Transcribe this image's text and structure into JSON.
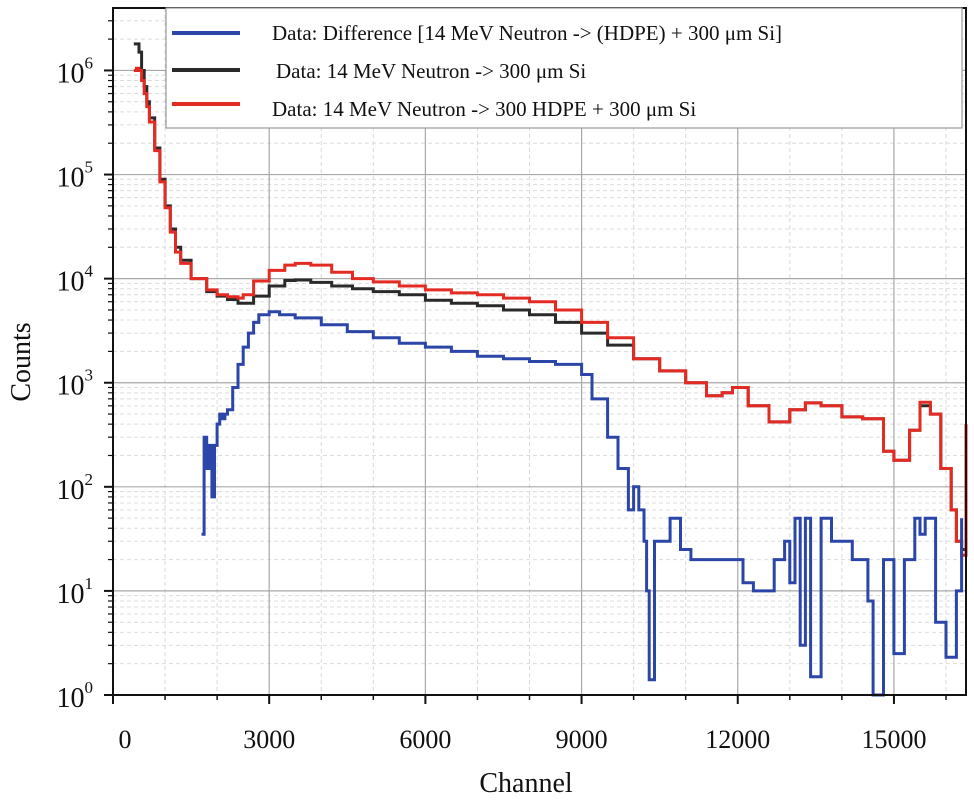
{
  "chart_data": {
    "type": "line",
    "title": "",
    "xlabel": "Channel",
    "ylabel": "Counts",
    "xlim": [
      0,
      16384
    ],
    "ylim_log10": [
      0,
      6.6
    ],
    "x_ticks": [
      0,
      3000,
      6000,
      9000,
      12000,
      15000
    ],
    "x_tick_labels": [
      "0",
      "3000",
      "6000",
      "9000",
      "12000",
      "15000"
    ],
    "y_ticks_log10": [
      0,
      1,
      2,
      3,
      4,
      5,
      6
    ],
    "y_tick_base": "10",
    "y_tick_exponents": [
      "0",
      "1",
      "2",
      "3",
      "4",
      "5",
      "6"
    ],
    "grid": true,
    "legend_position": "top-right",
    "series": [
      {
        "name": "Data: Difference [14 MeV Neutron -> (HDPE) + 300 μm Si]",
        "color": "#2b46a8",
        "x": [
          1700,
          1750,
          1800,
          1850,
          1900,
          1950,
          2000,
          2050,
          2100,
          2150,
          2200,
          2300,
          2400,
          2500,
          2600,
          2700,
          2800,
          3000,
          3200,
          3500,
          4000,
          4500,
          5000,
          5500,
          6000,
          6500,
          7000,
          7500,
          8000,
          8500,
          9000,
          9200,
          9500,
          9700,
          9900,
          10000,
          10100,
          10200,
          10250,
          10300,
          10350,
          10400,
          10500,
          10700,
          10900,
          11100,
          11300,
          11500,
          11700,
          11900,
          12100,
          12300,
          12500,
          12700,
          12900,
          13000,
          13100,
          13200,
          13300,
          13400,
          13600,
          13800,
          14000,
          14200,
          14400,
          14500,
          14600,
          14700,
          14800,
          14900,
          15000,
          15200,
          15400,
          15500,
          15600,
          15800,
          16000,
          16200,
          16300
        ],
        "y": [
          35,
          300,
          150,
          250,
          80,
          250,
          400,
          500,
          450,
          500,
          550,
          900,
          1500,
          2200,
          3000,
          3800,
          4500,
          4800,
          4500,
          4200,
          3600,
          3100,
          2700,
          2400,
          2200,
          2000,
          1800,
          1700,
          1600,
          1500,
          1200,
          700,
          300,
          150,
          60,
          100,
          60,
          30,
          10,
          1.4,
          1.4,
          30,
          30,
          50,
          25,
          20,
          20,
          20,
          20,
          20,
          12,
          10,
          10,
          20,
          30,
          12,
          50,
          3,
          50,
          1.5,
          50,
          30,
          30,
          20,
          20,
          8,
          1.0,
          1.0,
          20,
          20,
          2.5,
          20,
          50,
          35,
          50,
          5,
          2.3,
          10,
          50
        ],
        "line": "step"
      },
      {
        "name": "Data: 14 MeV Neutron -> 300 μm Si",
        "color": "#2a2a2a",
        "x": [
          400,
          450,
          500,
          550,
          600,
          650,
          700,
          800,
          900,
          1000,
          1100,
          1200,
          1300,
          1500,
          1800,
          2000,
          2200,
          2400,
          2500,
          2700,
          3000,
          3300,
          3500,
          3800,
          4200,
          4600,
          5000,
          5500,
          6000,
          6500,
          7000,
          7500,
          8000,
          8500,
          9000,
          9500,
          10000,
          10500,
          11000,
          11400,
          11700,
          11900,
          12200,
          12600,
          13000,
          13300,
          13600,
          14000,
          14400,
          14800,
          15000,
          15300,
          15500,
          15700,
          15900,
          16100,
          16200,
          16300,
          16384
        ],
        "y": [
          1800000,
          1800000,
          1500000,
          1000000,
          700000,
          500000,
          350000,
          180000,
          90000,
          50000,
          30000,
          20000,
          15000,
          10000,
          7500,
          6800,
          6300,
          5800,
          5800,
          6800,
          8500,
          9600,
          9700,
          9200,
          8500,
          8000,
          7500,
          7000,
          6200,
          5800,
          5500,
          5000,
          4500,
          3800,
          3000,
          2300,
          1700,
          1300,
          1000,
          750,
          800,
          900,
          600,
          420,
          550,
          640,
          600,
          470,
          450,
          220,
          180,
          350,
          600,
          500,
          150,
          60,
          30,
          25,
          30
        ],
        "line": "step"
      },
      {
        "name": "Data: 14 MeV Neutron -> 300 HDPE + 300 μm Si",
        "color": "#e32b23",
        "x": [
          400,
          450,
          500,
          550,
          600,
          650,
          700,
          800,
          900,
          1000,
          1100,
          1200,
          1300,
          1500,
          1800,
          2000,
          2200,
          2400,
          2500,
          2700,
          3000,
          3300,
          3500,
          3800,
          4200,
          4600,
          5000,
          5500,
          6000,
          6500,
          7000,
          7500,
          8000,
          8500,
          9000,
          9500,
          10000,
          10500,
          11000,
          11400,
          11700,
          11900,
          12200,
          12600,
          13000,
          13300,
          13600,
          14000,
          14400,
          14800,
          15000,
          15300,
          15500,
          15700,
          15900,
          16100,
          16200,
          16300,
          16384
        ],
        "y": [
          1000000,
          1050000,
          1000000,
          800000,
          600000,
          450000,
          320000,
          170000,
          85000,
          48000,
          28000,
          18000,
          14000,
          10000,
          7800,
          7000,
          6700,
          6500,
          7000,
          9500,
          12000,
          13500,
          14000,
          13500,
          11500,
          10000,
          9300,
          8500,
          7800,
          7300,
          7000,
          6500,
          6000,
          5000,
          3800,
          2700,
          1700,
          1300,
          1000,
          750,
          800,
          900,
          600,
          420,
          550,
          640,
          600,
          470,
          450,
          220,
          180,
          350,
          650,
          500,
          150,
          60,
          30,
          22,
          400
        ],
        "line": "step"
      }
    ]
  }
}
